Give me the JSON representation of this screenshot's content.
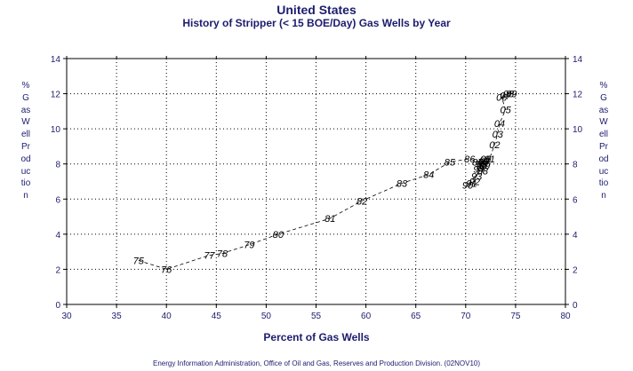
{
  "header": {
    "title": "United States",
    "subtitle": "History of Stripper (< 15 BOE/Day) Gas Wells by Year"
  },
  "footer": {
    "source": "Energy Information Administration, Office of Oil and Gas, Reserves and Production Division. (02NOV10)"
  },
  "chart_data": {
    "type": "scatter",
    "title": "United States",
    "subtitle": "History of Stripper (< 15 BOE/Day) Gas Wells by Year",
    "xlabel": "Percent of Gas Wells",
    "ylabel": "% Gas Well Production",
    "xlim": [
      30,
      80
    ],
    "ylim": [
      0,
      14
    ],
    "xticks": [
      30,
      35,
      40,
      45,
      50,
      55,
      60,
      65,
      70,
      75,
      80
    ],
    "yticks": [
      0,
      2,
      4,
      6,
      8,
      10,
      12,
      14
    ],
    "grid": true,
    "line_style": "dashed",
    "points": [
      {
        "label": "75",
        "x": 37.2,
        "y": 2.5
      },
      {
        "label": "76",
        "x": 40.0,
        "y": 2.0
      },
      {
        "label": "77",
        "x": 44.3,
        "y": 2.8
      },
      {
        "label": "78",
        "x": 45.6,
        "y": 2.9
      },
      {
        "label": "79",
        "x": 48.3,
        "y": 3.4
      },
      {
        "label": "80",
        "x": 51.2,
        "y": 4.0
      },
      {
        "label": "81",
        "x": 56.4,
        "y": 4.9
      },
      {
        "label": "82",
        "x": 59.6,
        "y": 5.9
      },
      {
        "label": "83",
        "x": 63.6,
        "y": 6.9
      },
      {
        "label": "84",
        "x": 66.3,
        "y": 7.4
      },
      {
        "label": "85",
        "x": 68.4,
        "y": 8.1
      },
      {
        "label": "86",
        "x": 70.4,
        "y": 8.3
      },
      {
        "label": "87",
        "x": 71.2,
        "y": 8.1
      },
      {
        "label": "88",
        "x": 71.7,
        "y": 7.6
      },
      {
        "label": "89",
        "x": 71.9,
        "y": 7.9
      },
      {
        "label": "90",
        "x": 70.2,
        "y": 6.8
      },
      {
        "label": "91",
        "x": 70.6,
        "y": 6.9
      },
      {
        "label": "92",
        "x": 70.9,
        "y": 7.0
      },
      {
        "label": "93",
        "x": 71.1,
        "y": 7.3
      },
      {
        "label": "94",
        "x": 71.3,
        "y": 7.7
      },
      {
        "label": "95",
        "x": 71.5,
        "y": 8.0
      },
      {
        "label": "96",
        "x": 71.6,
        "y": 7.9
      },
      {
        "label": "97",
        "x": 71.8,
        "y": 8.1
      },
      {
        "label": "98",
        "x": 71.9,
        "y": 8.2
      },
      {
        "label": "99",
        "x": 71.7,
        "y": 8.0
      },
      {
        "label": "00",
        "x": 72.0,
        "y": 8.3
      },
      {
        "label": "01",
        "x": 72.4,
        "y": 8.3
      },
      {
        "label": "02",
        "x": 72.9,
        "y": 9.1
      },
      {
        "label": "03",
        "x": 73.2,
        "y": 9.7
      },
      {
        "label": "04",
        "x": 73.4,
        "y": 10.3
      },
      {
        "label": "05",
        "x": 74.0,
        "y": 11.1
      },
      {
        "label": "06",
        "x": 73.6,
        "y": 11.8
      },
      {
        "label": "07",
        "x": 74.0,
        "y": 11.9
      },
      {
        "label": "08",
        "x": 74.3,
        "y": 12.0
      },
      {
        "label": "09",
        "x": 74.6,
        "y": 12.0
      }
    ]
  }
}
